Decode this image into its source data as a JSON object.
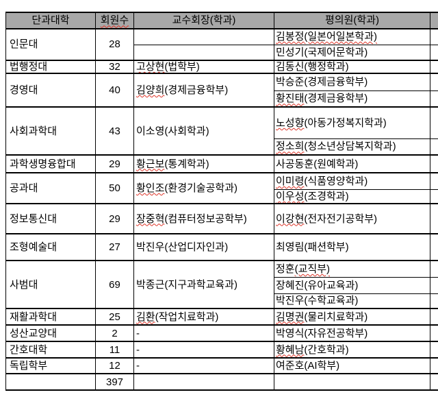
{
  "colors": {
    "header_bg": "#a8a8a8",
    "border": "#000000",
    "spellcheck_wavy": "#dd3327",
    "cell_bg": "#ffffff"
  },
  "header": {
    "college": "단과대학",
    "members": "회원수",
    "members_wavy": true,
    "chair": "교수회장(학과)",
    "council": "평의원(학과)"
  },
  "dash": "-",
  "total": {
    "members": "397"
  },
  "sections": [
    {
      "college": "인문대",
      "members": "28",
      "chair": {
        "type": "split_empty"
      },
      "council": [
        {
          "name": "김봉정",
          "dept": "(일본어일본학과)",
          "wavy": "all"
        },
        {
          "name": "민성기",
          "dept": "(국제어문학과)",
          "wavy": "none"
        }
      ]
    },
    {
      "college": "법행정대",
      "members": "32",
      "chair": {
        "name": "고상현",
        "dept": "(법학부)",
        "wavy": "name"
      },
      "council": [
        {
          "name": "김동신",
          "dept": "(행정학과)",
          "wavy": "none"
        }
      ]
    },
    {
      "college": "경영대",
      "members": "40",
      "chair": {
        "name": "김양희",
        "dept": "(경제금융학부)",
        "wavy": "name"
      },
      "council": [
        {
          "name": "박승준",
          "dept": "(경제금융학부)",
          "wavy": "none"
        },
        {
          "name": "황진태",
          "dept": "(경제금융학부)",
          "wavy": "name"
        }
      ]
    },
    {
      "college": "사회과학대",
      "members": "43",
      "chair": {
        "name": "이소영",
        "dept": "(사회학과)",
        "wavy": "none"
      },
      "council": [
        {
          "name": "노성향",
          "dept": "(아동가정복지학과)",
          "wavy": "name"
        },
        {
          "name": "정소희",
          "dept": "(청소년상담복지학과)",
          "wavy": "name"
        }
      ]
    },
    {
      "college": "과학생명융합대",
      "members": "29",
      "chair": {
        "name": "황근보",
        "dept": "(통계학과)",
        "wavy": "name"
      },
      "council": [
        {
          "name": "사공동훈",
          "dept": "(원예학과)",
          "wavy": "none"
        }
      ]
    },
    {
      "college": "공과대",
      "members": "50",
      "chair": {
        "name": "황인조",
        "dept": "(환경기술공학과)",
        "wavy": "name"
      },
      "council": [
        {
          "name": "이미령",
          "dept": "(식품영양학과)",
          "wavy": "name"
        },
        {
          "name": "이우성",
          "dept": "(조경학과)",
          "wavy": "name"
        }
      ]
    },
    {
      "college": "정보통신대",
      "members": "29",
      "chair": {
        "name": "장중혁",
        "dept": "(컴퓨터정보공학부)",
        "wavy": "name"
      },
      "council": [
        {
          "name": "이강현",
          "dept": "(전자전기공학부)",
          "wavy": "name"
        }
      ]
    },
    {
      "college": "조형예술대",
      "members": "27",
      "chair": {
        "name": "박진우",
        "dept": "(산업디자인과)",
        "wavy": "none"
      },
      "council": [
        {
          "name": "최영림",
          "dept": "(패션학부)",
          "wavy": "none"
        }
      ]
    },
    {
      "college": "사범대",
      "members": "69",
      "chair": {
        "name": "박종근",
        "dept": "(지구과학교육과)",
        "wavy": "none"
      },
      "council": [
        {
          "name": "정훈",
          "dept": "(교직부)",
          "wavy": "dept"
        },
        {
          "name": "장혜진",
          "dept": "(유아교육과)",
          "wavy": "none"
        },
        {
          "name": "박진우",
          "dept": "(수학교육과)",
          "wavy": "none"
        }
      ]
    },
    {
      "college": "재활과학대",
      "members": "25",
      "chair": {
        "name": "김환",
        "dept": "(작업치료학과)",
        "wavy": "name"
      },
      "council": [
        {
          "name": "김명권",
          "dept": "(물리치료학과)",
          "wavy": "name"
        }
      ]
    },
    {
      "college": "성산교양대",
      "members": "2",
      "chair": {
        "type": "dash"
      },
      "council": [
        {
          "name": "박영식",
          "dept": "(자유전공학부)",
          "wavy": "none"
        }
      ]
    },
    {
      "college": "간호대학",
      "members": "11",
      "chair": {
        "type": "dash"
      },
      "council": [
        {
          "name": "황혜남",
          "dept": "(간호학과)",
          "wavy": "name"
        }
      ]
    },
    {
      "college": "독립학부",
      "members": "12",
      "chair": {
        "type": "dash"
      },
      "council": [
        {
          "name": "여준호",
          "dept": "(AI학부)",
          "wavy": "none"
        }
      ]
    }
  ]
}
